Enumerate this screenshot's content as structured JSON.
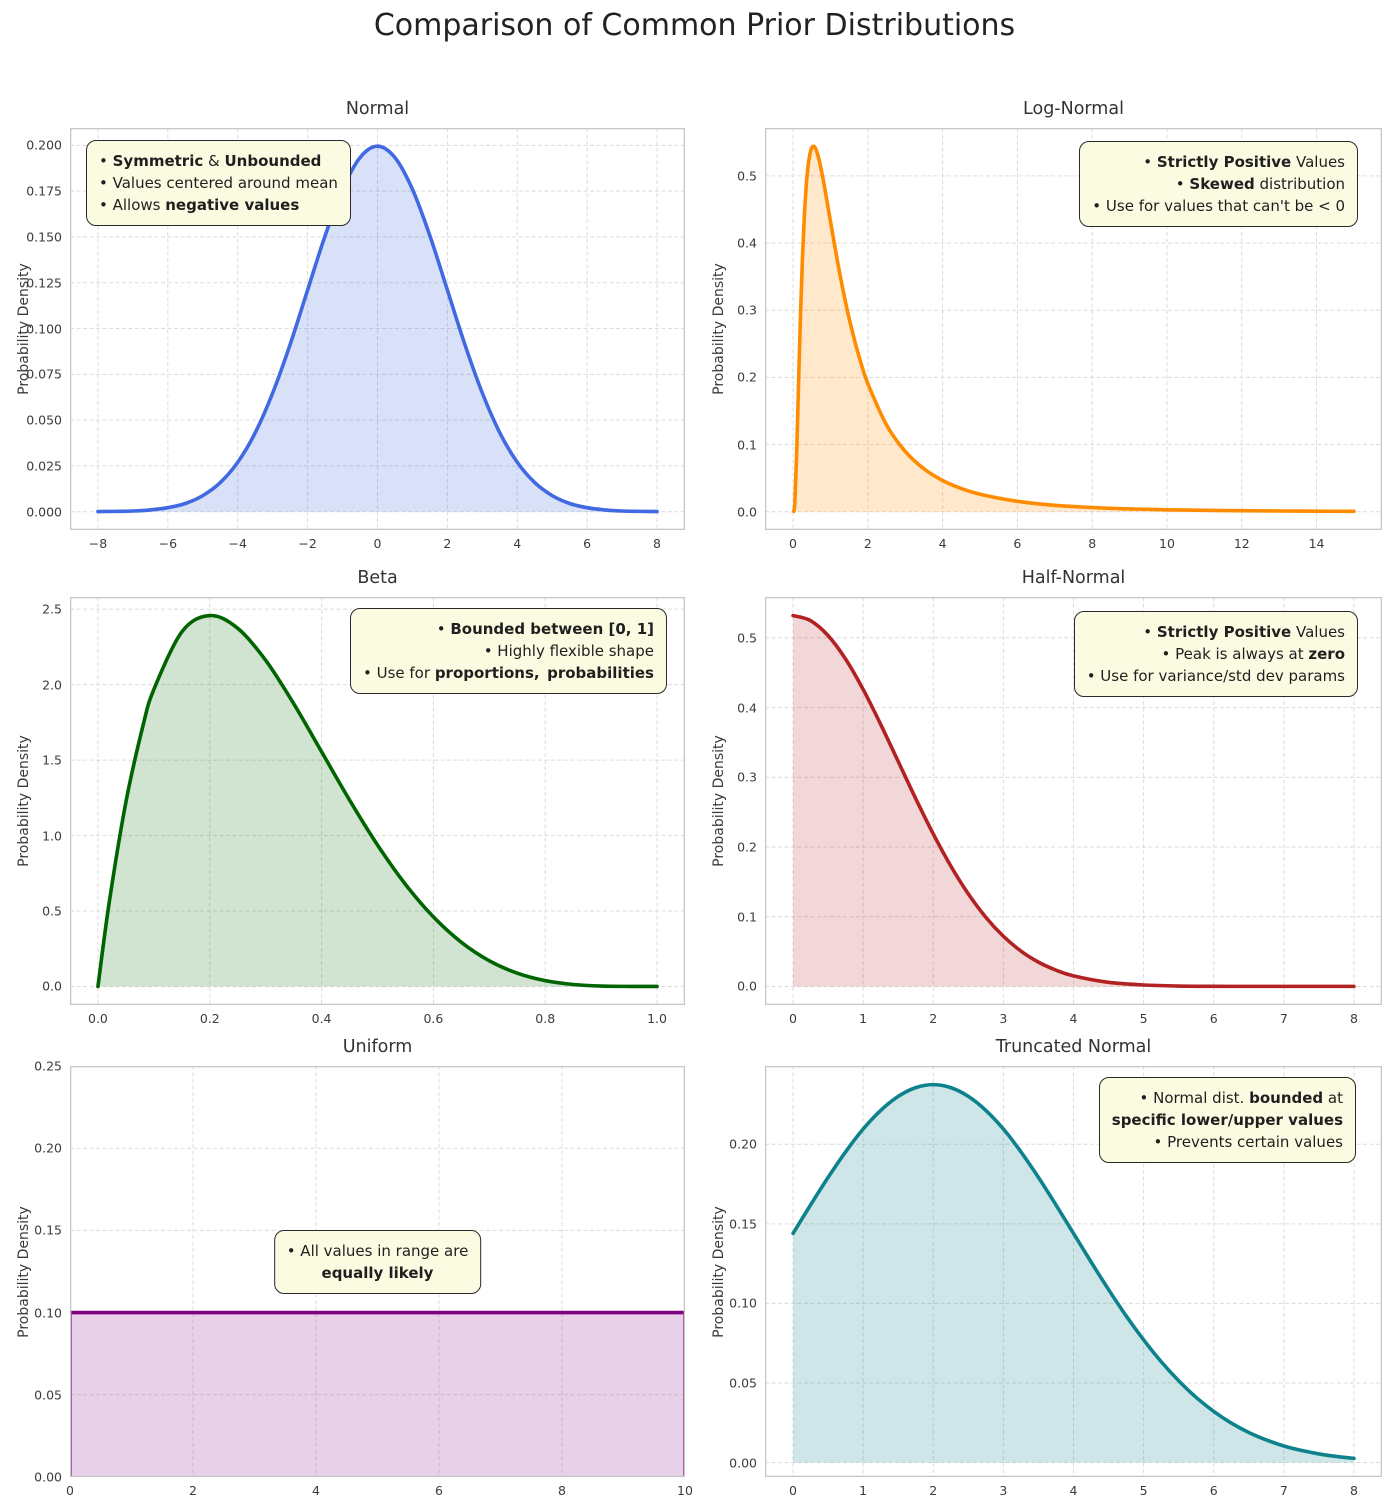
{
  "page_title": "Comparison of Common Prior Distributions",
  "chart_data": [
    {
      "id": "normal",
      "type": "area",
      "title": "Normal",
      "ylabel": "Probability Density",
      "color": "#4169e1",
      "fill": "rgba(65,105,225,0.20)",
      "xlim": [
        -8.8,
        8.8
      ],
      "ylim": [
        -0.00997,
        0.20945
      ],
      "xticks": [
        [
          -8,
          "−8"
        ],
        [
          -6,
          "−6"
        ],
        [
          -4,
          "−4"
        ],
        [
          -2,
          "−2"
        ],
        [
          0,
          "0"
        ],
        [
          2,
          "2"
        ],
        [
          4,
          "4"
        ],
        [
          6,
          "6"
        ],
        [
          8,
          "8"
        ]
      ],
      "yticks": [
        [
          0,
          "0.000"
        ],
        [
          0.025,
          "0.025"
        ],
        [
          0.05,
          "0.050"
        ],
        [
          0.075,
          "0.075"
        ],
        [
          0.1,
          "0.100"
        ],
        [
          0.125,
          "0.125"
        ],
        [
          0.15,
          "0.150"
        ],
        [
          0.175,
          "0.175"
        ],
        [
          0.2,
          "0.200"
        ]
      ],
      "smooth": true,
      "points": [
        [
          -8,
          0.0001
        ],
        [
          -7.5,
          0.0002
        ],
        [
          -7,
          0.0004
        ],
        [
          -6.5,
          0.001
        ],
        [
          -6,
          0.0022
        ],
        [
          -5.5,
          0.0045
        ],
        [
          -5,
          0.0088
        ],
        [
          -4.5,
          0.0159
        ],
        [
          -4,
          0.027
        ],
        [
          -3.5,
          0.0431
        ],
        [
          -3,
          0.0648
        ],
        [
          -2.5,
          0.0913
        ],
        [
          -2,
          0.121
        ],
        [
          -1.5,
          0.1506
        ],
        [
          -1,
          0.176
        ],
        [
          -0.5,
          0.1933
        ],
        [
          0,
          0.1995
        ],
        [
          0.5,
          0.1933
        ],
        [
          1,
          0.176
        ],
        [
          1.5,
          0.1506
        ],
        [
          2,
          0.121
        ],
        [
          2.5,
          0.0913
        ],
        [
          3,
          0.0648
        ],
        [
          3.5,
          0.0431
        ],
        [
          4,
          0.027
        ],
        [
          4.5,
          0.0159
        ],
        [
          5,
          0.0088
        ],
        [
          5.5,
          0.0045
        ],
        [
          6,
          0.0022
        ],
        [
          6.5,
          0.001
        ],
        [
          7,
          0.0004
        ],
        [
          7.5,
          0.0002
        ],
        [
          8,
          0.0001
        ]
      ],
      "annotation": {
        "align": "left",
        "lines": [
          [
            {
              "t": "• ",
              "b": false
            },
            {
              "t": "Symmetric",
              "b": true
            },
            {
              "t": " & ",
              "b": false
            },
            {
              "t": "Unbounded",
              "b": true
            }
          ],
          [
            {
              "t": "• Values centered around mean",
              "b": false
            }
          ],
          [
            {
              "t": "• Allows ",
              "b": false
            },
            {
              "t": "negative values",
              "b": true
            }
          ]
        ]
      }
    },
    {
      "id": "lognormal",
      "type": "area",
      "title": "Log-Normal",
      "ylabel": "Probability Density",
      "color": "#ff8c00",
      "fill": "rgba(255,140,0,0.20)",
      "xlim": [
        -0.75,
        15.75
      ],
      "ylim": [
        -0.0272,
        0.5712
      ],
      "xticks": [
        [
          0,
          "0"
        ],
        [
          2,
          "2"
        ],
        [
          4,
          "4"
        ],
        [
          6,
          "6"
        ],
        [
          8,
          "8"
        ],
        [
          10,
          "10"
        ],
        [
          12,
          "12"
        ],
        [
          14,
          "14"
        ]
      ],
      "yticks": [
        [
          0,
          "0.0"
        ],
        [
          0.1,
          "0.1"
        ],
        [
          0.2,
          "0.2"
        ],
        [
          0.3,
          "0.3"
        ],
        [
          0.4,
          "0.4"
        ],
        [
          0.5,
          "0.5"
        ]
      ],
      "smooth": true,
      "points": [
        [
          0.02,
          0.0005
        ],
        [
          0.05,
          0.0159
        ],
        [
          0.1,
          0.0927
        ],
        [
          0.15,
          0.1959
        ],
        [
          0.2,
          0.2939
        ],
        [
          0.25,
          0.3752
        ],
        [
          0.3,
          0.4375
        ],
        [
          0.35,
          0.4828
        ],
        [
          0.4,
          0.5136
        ],
        [
          0.45,
          0.5322
        ],
        [
          0.5,
          0.5418
        ],
        [
          0.55,
          0.544
        ],
        [
          0.6,
          0.5408
        ],
        [
          0.65,
          0.5333
        ],
        [
          0.7,
          0.5229
        ],
        [
          0.8,
          0.496
        ],
        [
          0.9,
          0.4648
        ],
        [
          1,
          0.4324
        ],
        [
          1.2,
          0.3693
        ],
        [
          1.4,
          0.313
        ],
        [
          1.6,
          0.2648
        ],
        [
          1.8,
          0.2244
        ],
        [
          2,
          0.1907
        ],
        [
          2.5,
          0.1292
        ],
        [
          3,
          0.0897
        ],
        [
          3.5,
          0.0639
        ],
        [
          4,
          0.0465
        ],
        [
          4.5,
          0.0345
        ],
        [
          5,
          0.026
        ],
        [
          6,
          0.0155
        ],
        [
          7,
          0.0096
        ],
        [
          8,
          0.0063
        ],
        [
          9,
          0.0042
        ],
        [
          10,
          0.0029
        ],
        [
          11,
          0.0021
        ],
        [
          12,
          0.0015
        ],
        [
          13,
          0.0011
        ],
        [
          14,
          0.0008
        ],
        [
          15,
          0.0006
        ]
      ],
      "annotation": {
        "align": "right",
        "lines": [
          [
            {
              "t": "• ",
              "b": false
            },
            {
              "t": "Strictly Positive",
              "b": true
            },
            {
              "t": " Values",
              "b": false
            }
          ],
          [
            {
              "t": "• ",
              "b": false
            },
            {
              "t": "Skewed",
              "b": true
            },
            {
              "t": " distribution",
              "b": false
            }
          ],
          [
            {
              "t": "• Use for values that can't be < 0",
              "b": false
            }
          ]
        ]
      }
    },
    {
      "id": "beta",
      "type": "area",
      "title": "Beta",
      "ylabel": "Probability Density",
      "color": "#006400",
      "fill": "rgba(0,100,0,0.18)",
      "xlim": [
        -0.05,
        1.05
      ],
      "ylim": [
        -0.1229,
        2.5805
      ],
      "xticks": [
        [
          0,
          "0.0"
        ],
        [
          0.2,
          "0.2"
        ],
        [
          0.4,
          "0.4"
        ],
        [
          0.6,
          "0.6"
        ],
        [
          0.8,
          "0.8"
        ],
        [
          1,
          "1.0"
        ]
      ],
      "yticks": [
        [
          0,
          "0.0"
        ],
        [
          0.5,
          "0.5"
        ],
        [
          1,
          "1.0"
        ],
        [
          1.5,
          "1.5"
        ],
        [
          2,
          "2.0"
        ],
        [
          2.5,
          "2.5"
        ]
      ],
      "smooth": true,
      "points": [
        [
          0,
          0
        ],
        [
          0.02,
          0.5534
        ],
        [
          0.05,
          1.2218
        ],
        [
          0.08,
          1.7193
        ],
        [
          0.1,
          1.9683
        ],
        [
          0.15,
          2.3491
        ],
        [
          0.2,
          2.4576
        ],
        [
          0.25,
          2.373
        ],
        [
          0.3,
          2.1609
        ],
        [
          0.35,
          1.8744
        ],
        [
          0.4,
          1.5552
        ],
        [
          0.45,
          1.2353
        ],
        [
          0.5,
          0.9375
        ],
        [
          0.55,
          0.6766
        ],
        [
          0.6,
          0.4608
        ],
        [
          0.65,
          0.2926
        ],
        [
          0.7,
          0.1701
        ],
        [
          0.75,
          0.0879
        ],
        [
          0.8,
          0.0384
        ],
        [
          0.85,
          0.0129
        ],
        [
          0.9,
          0.0027
        ],
        [
          0.95,
          0.0002
        ],
        [
          1,
          0
        ]
      ],
      "annotation": {
        "align": "right",
        "lines": [
          [
            {
              "t": "• ",
              "b": false
            },
            {
              "t": "Bounded between [0, 1]",
              "b": true
            }
          ],
          [
            {
              "t": "• Highly flexible shape",
              "b": false
            }
          ],
          [
            {
              "t": "• Use for ",
              "b": false
            },
            {
              "t": "proportions, probabilities",
              "b": true
            }
          ]
        ]
      }
    },
    {
      "id": "halfnormal",
      "type": "area",
      "title": "Half-Normal",
      "ylabel": "Probability Density",
      "color": "#b22222",
      "fill": "rgba(178,34,34,0.18)",
      "xlim": [
        -0.4,
        8.4
      ],
      "ylim": [
        -0.0266,
        0.5585
      ],
      "xticks": [
        [
          0,
          "0"
        ],
        [
          1,
          "1"
        ],
        [
          2,
          "2"
        ],
        [
          3,
          "3"
        ],
        [
          4,
          "4"
        ],
        [
          5,
          "5"
        ],
        [
          6,
          "6"
        ],
        [
          7,
          "7"
        ],
        [
          8,
          "8"
        ]
      ],
      "yticks": [
        [
          0,
          "0.0"
        ],
        [
          0.1,
          "0.1"
        ],
        [
          0.2,
          "0.2"
        ],
        [
          0.3,
          "0.3"
        ],
        [
          0.4,
          "0.4"
        ],
        [
          0.5,
          "0.5"
        ]
      ],
      "smooth": true,
      "points": [
        [
          0,
          0.5319
        ],
        [
          0.25,
          0.5246
        ],
        [
          0.5,
          0.5031
        ],
        [
          0.75,
          0.4694
        ],
        [
          1,
          0.4259
        ],
        [
          1.25,
          0.3758
        ],
        [
          1.5,
          0.3226
        ],
        [
          1.75,
          0.2693
        ],
        [
          2,
          0.2187
        ],
        [
          2.25,
          0.1727
        ],
        [
          2.5,
          0.1327
        ],
        [
          2.75,
          0.0991
        ],
        [
          3,
          0.072
        ],
        [
          3.25,
          0.0508
        ],
        [
          3.5,
          0.0349
        ],
        [
          3.75,
          0.0234
        ],
        [
          4,
          0.0152
        ],
        [
          4.5,
          0.0059
        ],
        [
          5,
          0.0021
        ],
        [
          5.5,
          0.0006
        ],
        [
          6,
          0.0002
        ],
        [
          6.5,
          0.0001
        ],
        [
          7,
          0.0001
        ],
        [
          8,
          0.0001
        ]
      ],
      "annotation": {
        "align": "right",
        "lines": [
          [
            {
              "t": "• ",
              "b": false
            },
            {
              "t": "Strictly Positive",
              "b": true
            },
            {
              "t": " Values",
              "b": false
            }
          ],
          [
            {
              "t": "• Peak is always at ",
              "b": false
            },
            {
              "t": "zero",
              "b": true
            }
          ],
          [
            {
              "t": "• Use for variance/std dev params",
              "b": false
            }
          ]
        ]
      }
    },
    {
      "id": "uniform",
      "type": "area",
      "title": "Uniform",
      "ylabel": "Probability Density",
      "color": "#800080",
      "fill": "rgba(128,0,128,0.18)",
      "xlim": [
        0,
        10
      ],
      "ylim": [
        0,
        0.25
      ],
      "xticks": [
        [
          0,
          "0"
        ],
        [
          2,
          "2"
        ],
        [
          4,
          "4"
        ],
        [
          6,
          "6"
        ],
        [
          8,
          "8"
        ],
        [
          10,
          "10"
        ]
      ],
      "yticks": [
        [
          0,
          "0.00"
        ],
        [
          0.05,
          "0.05"
        ],
        [
          0.1,
          "0.10"
        ],
        [
          0.15,
          "0.15"
        ],
        [
          0.2,
          "0.20"
        ],
        [
          0.25,
          "0.25"
        ]
      ],
      "smooth": false,
      "points": [
        [
          0,
          0
        ],
        [
          0,
          0.1
        ],
        [
          10,
          0.1
        ],
        [
          10,
          0
        ]
      ],
      "annotation": {
        "align": "center",
        "lines": [
          [
            {
              "t": "• All values in range are",
              "b": false
            }
          ],
          [
            {
              "t": "equally likely",
              "b": true
            }
          ]
        ]
      }
    },
    {
      "id": "truncnormal",
      "type": "area",
      "title": "Truncated Normal",
      "ylabel": "Probability Density",
      "color": "#0e828c",
      "fill": "rgba(14,130,140,0.20)",
      "xlim": [
        -0.4,
        8.4
      ],
      "ylim": [
        -0.0091,
        0.2492
      ],
      "xticks": [
        [
          0,
          "0"
        ],
        [
          1,
          "1"
        ],
        [
          2,
          "2"
        ],
        [
          3,
          "3"
        ],
        [
          4,
          "4"
        ],
        [
          5,
          "5"
        ],
        [
          6,
          "6"
        ],
        [
          7,
          "7"
        ],
        [
          8,
          "8"
        ]
      ],
      "yticks": [
        [
          0,
          "0.00"
        ],
        [
          0.05,
          "0.05"
        ],
        [
          0.1,
          "0.10"
        ],
        [
          0.15,
          "0.15"
        ],
        [
          0.2,
          "0.20"
        ]
      ],
      "smooth": true,
      "points": [
        [
          0,
          0.144
        ],
        [
          0.25,
          0.1619
        ],
        [
          0.5,
          0.1792
        ],
        [
          0.75,
          0.1953
        ],
        [
          1,
          0.2096
        ],
        [
          1.25,
          0.2213
        ],
        [
          1.5,
          0.2301
        ],
        [
          1.75,
          0.2356
        ],
        [
          2,
          0.2375
        ],
        [
          2.25,
          0.2356
        ],
        [
          2.5,
          0.2301
        ],
        [
          2.75,
          0.2213
        ],
        [
          3,
          0.2096
        ],
        [
          3.25,
          0.1953
        ],
        [
          3.5,
          0.1792
        ],
        [
          3.75,
          0.1619
        ],
        [
          4,
          0.144
        ],
        [
          4.25,
          0.1261
        ],
        [
          4.5,
          0.1087
        ],
        [
          4.75,
          0.0922
        ],
        [
          5,
          0.0771
        ],
        [
          5.25,
          0.0634
        ],
        [
          5.5,
          0.0514
        ],
        [
          5.75,
          0.0409
        ],
        [
          6,
          0.0321
        ],
        [
          6.25,
          0.0248
        ],
        [
          6.5,
          0.0189
        ],
        [
          6.75,
          0.0142
        ],
        [
          7,
          0.0104
        ],
        [
          7.25,
          0.0076
        ],
        [
          7.5,
          0.0054
        ],
        [
          7.75,
          0.0038
        ],
        [
          8,
          0.0026
        ]
      ],
      "annotation": {
        "align": "right",
        "lines": [
          [
            {
              "t": "• Normal dist. ",
              "b": false
            },
            {
              "t": "bounded",
              "b": true
            },
            {
              "t": " at",
              "b": false
            }
          ],
          [
            {
              "t": "specific lower/upper values",
              "b": true
            }
          ],
          [
            {
              "t": "• Prevents certain values",
              "b": false
            }
          ]
        ]
      }
    }
  ]
}
